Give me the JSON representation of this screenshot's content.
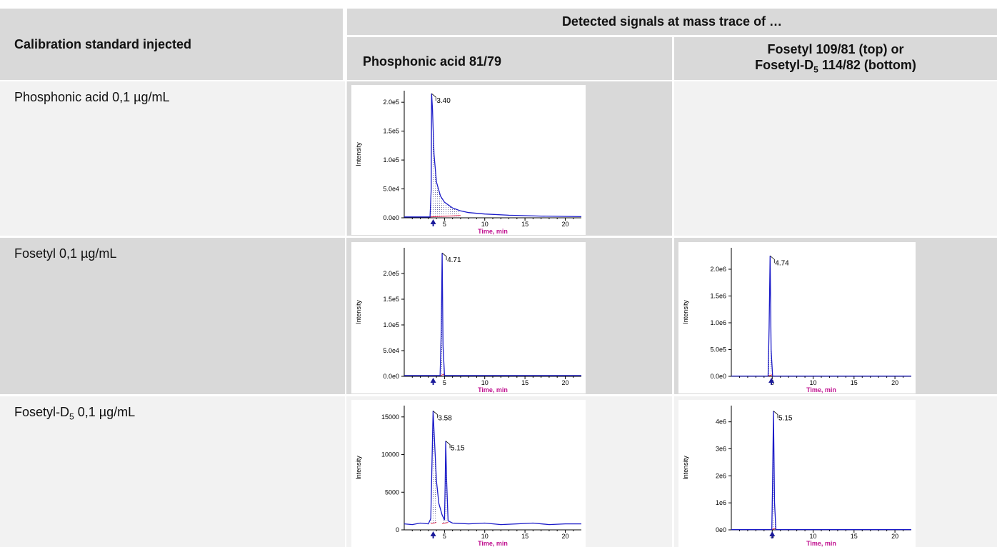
{
  "header": {
    "row_header": "Calibration standard injected",
    "group_title": "Detected signals at mass trace of …",
    "col1": "Phosphonic acid 81/79",
    "col2_line1": "Fosetyl 109/81 (top) or",
    "col2_line2_prefix": "Fosetyl-D",
    "col2_line2_sub": "5",
    "col2_line2_suffix": " 114/82 (bottom)"
  },
  "rows": [
    {
      "label": "Phosphonic acid 0,1 µg/mL"
    },
    {
      "label": "Fosetyl 0,1 µg/mL"
    },
    {
      "label_prefix": "Fosetyl-D",
      "label_sub": "5",
      "label_suffix": " 0,1 µg/mL"
    }
  ],
  "chart_data": [
    {
      "type": "line",
      "xlabel": "Time, min",
      "ylabel": "Intensity",
      "xlim": [
        0,
        22
      ],
      "ylim": [
        0,
        220000
      ],
      "x_ticks": [
        5,
        10,
        15,
        20
      ],
      "y_ticks": [
        0,
        50000,
        100000,
        150000,
        200000
      ],
      "y_tick_labels": [
        "0.0e0",
        "5.0e4",
        "1.0e5",
        "1.5e5",
        "2.0e5"
      ],
      "x": [
        0,
        3.2,
        3.35,
        3.4,
        3.5,
        3.7,
        4.0,
        4.5,
        5.0,
        6.0,
        7.0,
        8.0,
        10.0,
        13.0,
        17.0,
        22.0
      ],
      "y": [
        1500,
        1500,
        50000,
        215000,
        190000,
        110000,
        62000,
        38000,
        27000,
        17000,
        12000,
        9000,
        6500,
        4500,
        3000,
        2000
      ],
      "peaks": [
        {
          "label": "3.40",
          "x": 3.4,
          "y": 215000
        }
      ],
      "marker_x": 3.6
    },
    {
      "type": "line",
      "xlabel": "Time, min",
      "ylabel": "Intensity",
      "xlim": [
        0,
        22
      ],
      "ylim": [
        0,
        250000
      ],
      "x_ticks": [
        5,
        10,
        15,
        20
      ],
      "y_ticks": [
        0,
        50000,
        100000,
        150000,
        200000
      ],
      "y_tick_labels": [
        "0.0e0",
        "5.0e4",
        "1.0e5",
        "1.5e5",
        "2.0e5"
      ],
      "x": [
        0,
        4.45,
        4.6,
        4.71,
        4.82,
        5.0,
        22.0
      ],
      "y": [
        1500,
        1500,
        90000,
        240000,
        60000,
        1500,
        1500
      ],
      "peaks": [
        {
          "label": "4.71",
          "x": 4.71,
          "y": 240000
        }
      ],
      "marker_x": 3.6
    },
    {
      "type": "line",
      "xlabel": "Time, min",
      "ylabel": "Intensity",
      "xlim": [
        0,
        22
      ],
      "ylim": [
        0,
        2400000
      ],
      "x_ticks": [
        5,
        10,
        15,
        20
      ],
      "y_ticks": [
        0,
        500000,
        1000000,
        1500000,
        2000000
      ],
      "y_tick_labels": [
        "0.0e0",
        "5.0e5",
        "1.0e6",
        "1.5e6",
        "2.0e6"
      ],
      "x": [
        0,
        4.5,
        4.62,
        4.74,
        4.86,
        5.05,
        22.0
      ],
      "y": [
        5000,
        5000,
        900000,
        2250000,
        500000,
        5000,
        5000
      ],
      "peaks": [
        {
          "label": "4.74",
          "x": 4.74,
          "y": 2250000
        }
      ],
      "marker_x": 4.9
    },
    {
      "type": "line",
      "xlabel": "Time, min",
      "ylabel": "Intensity",
      "xlim": [
        0,
        22
      ],
      "ylim": [
        0,
        16500
      ],
      "x_ticks": [
        5,
        10,
        15,
        20
      ],
      "y_ticks": [
        0,
        5000,
        10000,
        15000
      ],
      "y_tick_labels": [
        "0",
        "5000",
        "10000",
        "15000"
      ],
      "x": [
        0,
        1.0,
        2.0,
        3.0,
        3.3,
        3.45,
        3.58,
        3.75,
        4.0,
        4.3,
        4.7,
        5.0,
        5.08,
        5.15,
        5.25,
        5.45,
        6.0,
        8.0,
        10.0,
        12.0,
        14.0,
        16.0,
        18.0,
        20.0,
        22.0
      ],
      "y": [
        800,
        700,
        900,
        800,
        1500,
        9000,
        15800,
        12000,
        6500,
        3500,
        2000,
        1300,
        6000,
        11800,
        7000,
        1200,
        900,
        800,
        900,
        700,
        800,
        900,
        700,
        800,
        800
      ],
      "peaks": [
        {
          "label": "3.58",
          "x": 3.58,
          "y": 15800
        },
        {
          "label": "5.15",
          "x": 5.15,
          "y": 11800
        }
      ],
      "marker_x": 3.6
    },
    {
      "type": "line",
      "xlabel": "Time, min",
      "ylabel": "Intensity",
      "xlim": [
        0,
        22
      ],
      "ylim": [
        0,
        4600000
      ],
      "x_ticks": [
        5,
        10,
        15,
        20
      ],
      "y_ticks": [
        0,
        1000000,
        2000000,
        3000000,
        4000000
      ],
      "y_tick_labels": [
        "0e0",
        "1e6",
        "2e6",
        "3e6",
        "4e6"
      ],
      "x": [
        0,
        4.95,
        5.05,
        5.15,
        5.28,
        5.45,
        22.0
      ],
      "y": [
        10000,
        10000,
        1800000,
        4400000,
        1000000,
        10000,
        10000
      ],
      "peaks": [
        {
          "label": "5.15",
          "x": 5.15,
          "y": 4400000
        }
      ],
      "marker_x": 5.0
    }
  ]
}
